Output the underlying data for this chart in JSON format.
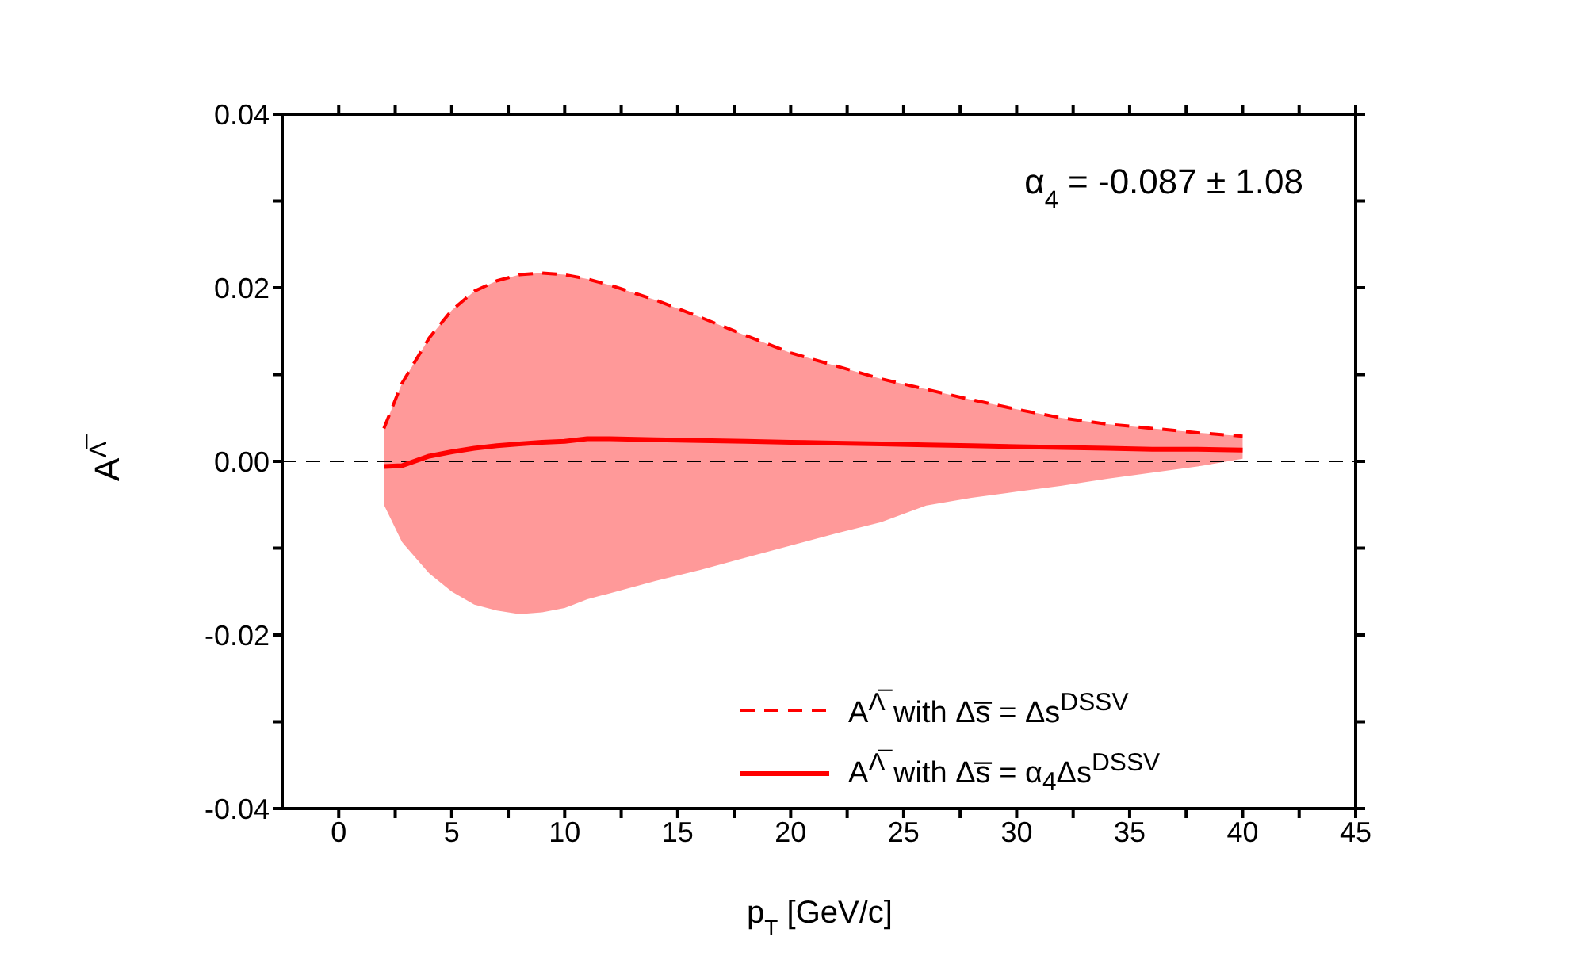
{
  "chart_data": {
    "type": "line",
    "xlabel": "p$_{T}$ [GeV/c]",
    "ylabel": "A$^{Λ̅}$",
    "annotations": [
      "α$_{4}$ = -0.087 ± 1.08"
    ],
    "x": [
      2,
      2.8,
      4,
      5,
      6,
      7,
      8,
      9,
      10,
      11,
      12,
      14,
      16,
      18,
      20,
      22,
      24,
      26,
      28,
      30,
      32,
      34,
      36,
      38,
      40
    ],
    "series": [
      {
        "name": "A$^{Λ̅}$ with Δs̅ = Δs$^{DSSV}$",
        "color": "#ff0000",
        "line_style": "dashed",
        "values": [
          0.0038,
          0.009,
          0.0142,
          0.0174,
          0.0196,
          0.0208,
          0.0215,
          0.0217,
          0.0215,
          0.021,
          0.0203,
          0.0186,
          0.0166,
          0.0145,
          0.0125,
          0.011,
          0.0095,
          0.0083,
          0.0071,
          0.006,
          0.005,
          0.0043,
          0.0038,
          0.0033,
          0.0029
        ]
      },
      {
        "name": "A$^{Λ̅}$ with Δs̅ = α$_{4}$Δs$^{DSSV}$",
        "color": "#ff0000",
        "line_style": "solid",
        "values": [
          -0.0006,
          -0.0005,
          0.0006,
          0.0011,
          0.0015,
          0.0018,
          0.002,
          0.0022,
          0.0023,
          0.0026,
          0.0026,
          0.0025,
          0.0024,
          0.0023,
          0.0022,
          0.0021,
          0.002,
          0.0019,
          0.0018,
          0.0017,
          0.0016,
          0.0015,
          0.0014,
          0.0014,
          0.0013
        ],
        "lower": [
          -0.005,
          -0.0093,
          -0.0129,
          -0.015,
          -0.0165,
          -0.0172,
          -0.0176,
          -0.0174,
          -0.0169,
          -0.0159,
          -0.0152,
          -0.0138,
          -0.0125,
          -0.0111,
          -0.0097,
          -0.0083,
          -0.007,
          -0.0051,
          -0.0042,
          -0.0035,
          -0.0028,
          -0.002,
          -0.0013,
          -0.0006,
          0.0003
        ],
        "upper": [
          0.0038,
          0.009,
          0.0142,
          0.0174,
          0.0196,
          0.0208,
          0.0215,
          0.0217,
          0.0215,
          0.021,
          0.0203,
          0.0186,
          0.0166,
          0.0145,
          0.0125,
          0.011,
          0.0095,
          0.0083,
          0.0071,
          0.006,
          0.005,
          0.0043,
          0.0038,
          0.0033,
          0.0029
        ]
      }
    ],
    "xlim": [
      -2.5,
      45
    ],
    "xticks": [
      0,
      {
        "value": 2.5,
        "label": null
      },
      5,
      {
        "value": 7.5,
        "label": null
      },
      10,
      {
        "value": 12.5,
        "label": null
      },
      15,
      {
        "value": 17.5,
        "label": null
      },
      20,
      {
        "value": 22.5,
        "label": null
      },
      25,
      {
        "value": 27.5,
        "label": null
      },
      30,
      {
        "value": 32.5,
        "label": null
      },
      35,
      {
        "value": 37.5,
        "label": null
      },
      40,
      {
        "value": 42.5,
        "label": null
      },
      45
    ],
    "ylim": [
      -0.04,
      0.04
    ],
    "yticks": [
      -0.04,
      {
        "value": -0.03,
        "label": null
      },
      -0.02,
      {
        "value": -0.01,
        "label": null
      },
      {
        "value": 0,
        "label": "0.00"
      },
      {
        "value": 0.01,
        "label": null
      },
      0.02,
      {
        "value": 0.03,
        "label": null
      },
      0.04
    ],
    "ref_lines": [
      {
        "axis": "y",
        "value": 0,
        "color": "#000000",
        "line_style": "dashed"
      }
    ],
    "legend": "bottom right",
    "marker": "none"
  }
}
